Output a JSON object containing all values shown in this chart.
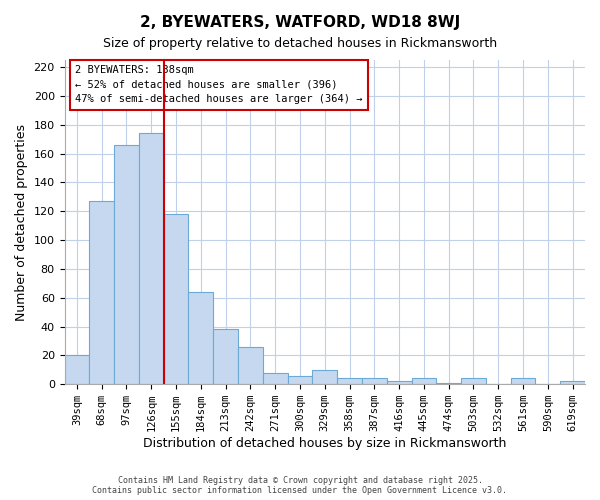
{
  "title": "2, BYEWATERS, WATFORD, WD18 8WJ",
  "subtitle": "Size of property relative to detached houses in Rickmansworth",
  "xlabel": "Distribution of detached houses by size in Rickmansworth",
  "ylabel": "Number of detached properties",
  "bar_values": [
    20,
    127,
    166,
    174,
    118,
    64,
    38,
    26,
    8,
    6,
    10,
    4,
    4,
    2,
    4,
    1,
    4,
    0,
    4,
    0,
    2
  ],
  "xlabels": [
    "39sqm",
    "68sqm",
    "97sqm",
    "126sqm",
    "155sqm",
    "184sqm",
    "213sqm",
    "242sqm",
    "271sqm",
    "300sqm",
    "329sqm",
    "358sqm",
    "387sqm",
    "416sqm",
    "445sqm",
    "474sqm",
    "503sqm",
    "532sqm",
    "561sqm",
    "590sqm",
    "619sqm"
  ],
  "bar_color": "#c5d8f0",
  "bar_edge_color": "#6aaad4",
  "vline_color": "#cc0000",
  "vline_x": 3.5,
  "ylim": [
    0,
    225
  ],
  "yticks": [
    0,
    20,
    40,
    60,
    80,
    100,
    120,
    140,
    160,
    180,
    200,
    220
  ],
  "annotation_title": "2 BYEWATERS: 138sqm",
  "annotation_line1": "← 52% of detached houses are smaller (396)",
  "annotation_line2": "47% of semi-detached houses are larger (364) →",
  "footer_line1": "Contains HM Land Registry data © Crown copyright and database right 2025.",
  "footer_line2": "Contains public sector information licensed under the Open Government Licence v3.0.",
  "background_color": "#ffffff",
  "grid_color": "#c0d0e8"
}
